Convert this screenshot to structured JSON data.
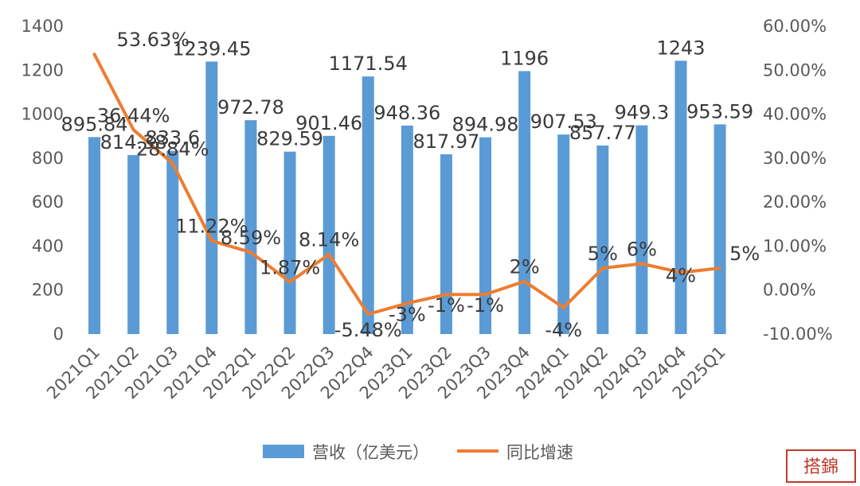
{
  "chart_data": {
    "type": "bar+line",
    "title": "",
    "categories": [
      "2021Q1",
      "2021Q2",
      "2021Q3",
      "2021Q4",
      "2022Q1",
      "2022Q2",
      "2022Q3",
      "2022Q4",
      "2023Q1",
      "2023Q2",
      "2023Q3",
      "2023Q4",
      "2024Q1",
      "2024Q2",
      "2024Q3",
      "2024Q4",
      "2025Q1"
    ],
    "series": [
      {
        "name": "营收（亿美元）",
        "type": "bar",
        "axis": "left",
        "color": "#5b9bd5",
        "values": [
          895.84,
          814.38,
          833.6,
          1239.45,
          972.78,
          829.59,
          901.46,
          1171.54,
          948.36,
          817.97,
          894.98,
          1196,
          907.53,
          857.77,
          949.3,
          1243,
          953.59
        ],
        "labels": [
          "895.84",
          "814.38",
          "833.6",
          "1239.45",
          "972.78",
          "829.59",
          "901.46",
          "1171.54",
          "948.36",
          "817.97",
          "894.98",
          "1196",
          "907.53",
          "857.77",
          "949.3",
          "1243",
          "953.59"
        ]
      },
      {
        "name": "同比增速",
        "type": "line",
        "axis": "right",
        "color": "#ed7d31",
        "values": [
          53.63,
          36.44,
          28.84,
          11.22,
          8.59,
          1.87,
          8.14,
          -5.48,
          -3,
          -1,
          -1,
          2,
          -4,
          5,
          6,
          4,
          5
        ],
        "labels": [
          "53.63%",
          "36.44%",
          "28.84%",
          "11.22%",
          "8.59%",
          "1.87%",
          "8.14%",
          "-5.48%",
          "-3%",
          "-1%",
          "-1%",
          "2%",
          "-4%",
          "5%",
          "6%",
          "4%",
          "5%"
        ]
      }
    ],
    "y_left": {
      "min": 0,
      "max": 1400,
      "ticks": [
        "0",
        "200",
        "400",
        "600",
        "800",
        "1000",
        "1200",
        "1400"
      ]
    },
    "y_right": {
      "min": -10,
      "max": 60,
      "ticks": [
        "-10.00%",
        "0.00%",
        "10.00%",
        "20.00%",
        "30.00%",
        "40.00%",
        "50.00%",
        "60.00%"
      ]
    },
    "grid": false,
    "legend_position": "bottom"
  },
  "stamp": {
    "text": "搭錦"
  }
}
